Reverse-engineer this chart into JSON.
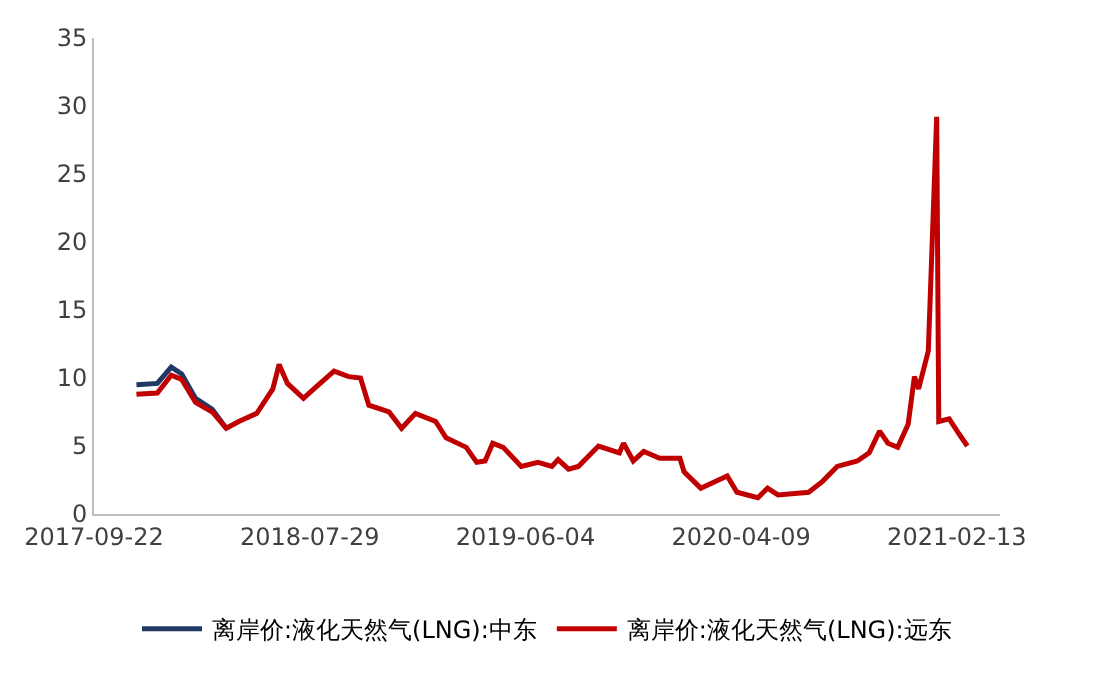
{
  "chart_data": {
    "type": "line",
    "x": [
      "2017-11-22",
      "2017-12-22",
      "2018-01-11",
      "2018-01-26",
      "2018-02-15",
      "2018-03-11",
      "2018-03-31",
      "2018-04-18",
      "2018-05-14",
      "2018-06-06",
      "2018-06-15",
      "2018-06-27",
      "2018-07-20",
      "2018-08-04",
      "2018-09-02",
      "2018-09-23",
      "2018-10-10",
      "2018-10-22",
      "2018-11-20",
      "2018-12-08",
      "2018-12-28",
      "2019-01-26",
      "2019-02-10",
      "2019-03-11",
      "2019-03-26",
      "2019-04-07",
      "2019-04-18",
      "2019-05-03",
      "2019-05-29",
      "2019-06-22",
      "2019-07-12",
      "2019-07-21",
      "2019-08-05",
      "2019-08-19",
      "2019-09-17",
      "2019-10-17",
      "2019-10-23",
      "2019-11-06",
      "2019-11-21",
      "2019-12-14",
      "2020-01-12",
      "2020-01-18",
      "2020-02-11",
      "2020-03-20",
      "2020-04-03",
      "2020-05-03",
      "2020-05-17",
      "2020-06-01",
      "2020-07-15",
      "2020-08-04",
      "2020-08-25",
      "2020-09-23",
      "2020-10-10",
      "2020-10-25",
      "2020-11-06",
      "2020-11-20",
      "2020-12-05",
      "2020-12-14",
      "2020-12-20",
      "2021-01-03",
      "2021-01-15",
      "2021-01-18",
      "2021-02-02",
      "2021-02-16",
      "2021-02-28"
    ],
    "series": [
      {
        "name": "离岸价:液化天然气(LNG):中东",
        "color": "#1f3864",
        "values": [
          9.5,
          9.6,
          10.8,
          10.3,
          8.5,
          7.7,
          6.3,
          null,
          null,
          null,
          null,
          null,
          null,
          null,
          null,
          null,
          null,
          null,
          null,
          null,
          null,
          null,
          null,
          null,
          null,
          null,
          null,
          null,
          null,
          null,
          null,
          null,
          null,
          null,
          null,
          null,
          null,
          null,
          null,
          null,
          null,
          null,
          null,
          null,
          null,
          null,
          null,
          null,
          null,
          null,
          null,
          null,
          null,
          null,
          null,
          null,
          null,
          null,
          null,
          null,
          null,
          null,
          null,
          null,
          null
        ]
      },
      {
        "name": "离岸价:液化天然气(LNG):远东",
        "color": "#c00000",
        "values": [
          8.8,
          8.9,
          10.2,
          9.9,
          8.2,
          7.5,
          6.3,
          6.8,
          7.4,
          9.2,
          11.0,
          9.6,
          8.5,
          9.2,
          10.5,
          10.1,
          10.0,
          8.0,
          7.5,
          6.3,
          7.4,
          6.8,
          5.6,
          4.9,
          3.8,
          3.9,
          5.2,
          4.9,
          3.5,
          3.8,
          3.5,
          4.0,
          3.3,
          3.5,
          5.0,
          4.5,
          5.2,
          3.9,
          4.6,
          4.1,
          4.1,
          3.1,
          1.9,
          2.8,
          1.6,
          1.2,
          1.9,
          1.4,
          1.6,
          2.4,
          3.5,
          3.9,
          4.5,
          6.1,
          5.2,
          4.9,
          6.6,
          10.1,
          9.2,
          12.0,
          29.2,
          6.8,
          7.0,
          5.9,
          5.0
        ]
      }
    ],
    "xlim": [
      "2017-09-22",
      "2021-04-16"
    ],
    "xticks": [
      "2017-09-22",
      "2018-07-29",
      "2019-06-04",
      "2020-04-09",
      "2021-02-13"
    ],
    "ylim": [
      0,
      35
    ],
    "yticks": [
      0,
      5,
      10,
      15,
      20,
      25,
      30,
      35
    ],
    "legend": "bottom",
    "marker": "none",
    "line_style": "solid"
  }
}
